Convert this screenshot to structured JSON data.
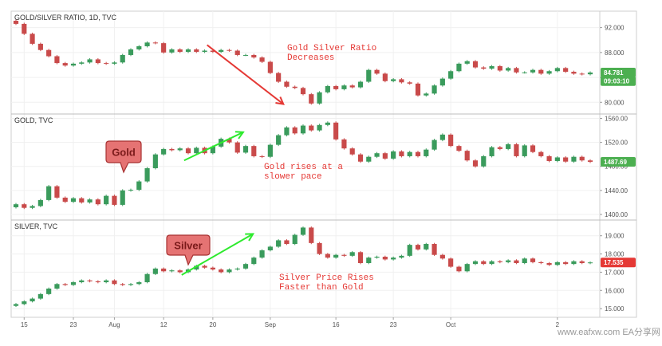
{
  "watermark": "www.eafxw.com  EA分享网",
  "chart_data": [
    {
      "type": "candlestick",
      "title": "GOLD/SILVER RATIO, 1D, TVC",
      "ylim": [
        78.5,
        94.0
      ],
      "yticks": [
        80.0,
        84.0,
        88.0,
        92.0
      ],
      "ytick_labels": [
        "80.000",
        "84.000",
        "88.000",
        "92.000"
      ],
      "price_tags": [
        {
          "label": "84.781",
          "color": "#4caf50",
          "value": 84.781
        },
        {
          "label": "09:03:10",
          "color": "#4caf50",
          "value": 83.4
        }
      ],
      "annotation": {
        "text": [
          "Gold Silver Ratio",
          "Decreases"
        ],
        "arrow_color": "#e53935",
        "arrow_from": {
          "i": 23.3,
          "v": 89.2
        },
        "arrow_to": {
          "i": 32.6,
          "v": 79.7
        }
      },
      "candles": [
        {
          "o": 93.1,
          "c": 92.6
        },
        {
          "o": 92.6,
          "c": 91.0
        },
        {
          "o": 91.0,
          "c": 89.4
        },
        {
          "o": 89.4,
          "c": 88.4
        },
        {
          "o": 88.4,
          "c": 87.4
        },
        {
          "o": 87.4,
          "c": 86.3
        },
        {
          "o": 86.3,
          "c": 85.9
        },
        {
          "o": 85.9,
          "c": 86.2
        },
        {
          "o": 86.2,
          "c": 86.4
        },
        {
          "o": 86.4,
          "c": 86.9
        },
        {
          "o": 86.9,
          "c": 86.3
        },
        {
          "o": 86.3,
          "c": 86.2
        },
        {
          "o": 86.2,
          "c": 86.4
        },
        {
          "o": 86.4,
          "c": 87.6
        },
        {
          "o": 87.6,
          "c": 88.5
        },
        {
          "o": 88.5,
          "c": 89.0
        },
        {
          "o": 89.0,
          "c": 89.6
        },
        {
          "o": 89.6,
          "c": 89.5
        },
        {
          "o": 89.5,
          "c": 88.0
        },
        {
          "o": 88.0,
          "c": 88.5
        },
        {
          "o": 88.5,
          "c": 88.1
        },
        {
          "o": 88.1,
          "c": 88.5
        },
        {
          "o": 88.5,
          "c": 88.1
        },
        {
          "o": 88.1,
          "c": 88.3
        },
        {
          "o": 88.3,
          "c": 88.1
        },
        {
          "o": 88.1,
          "c": 88.4
        },
        {
          "o": 88.4,
          "c": 88.3
        },
        {
          "o": 88.3,
          "c": 87.6
        },
        {
          "o": 87.6,
          "c": 87.6
        },
        {
          "o": 87.6,
          "c": 87.2
        },
        {
          "o": 87.2,
          "c": 86.5
        },
        {
          "o": 86.5,
          "c": 84.7
        },
        {
          "o": 84.7,
          "c": 83.3
        },
        {
          "o": 83.3,
          "c": 82.5
        },
        {
          "o": 82.5,
          "c": 82.3
        },
        {
          "o": 82.3,
          "c": 81.3
        },
        {
          "o": 81.3,
          "c": 79.8
        },
        {
          "o": 79.8,
          "c": 81.6
        },
        {
          "o": 81.6,
          "c": 82.6
        },
        {
          "o": 82.6,
          "c": 82.1
        },
        {
          "o": 82.1,
          "c": 82.7
        },
        {
          "o": 82.7,
          "c": 82.4
        },
        {
          "o": 82.4,
          "c": 83.3
        },
        {
          "o": 83.3,
          "c": 85.2
        },
        {
          "o": 85.2,
          "c": 84.6
        },
        {
          "o": 84.6,
          "c": 83.4
        },
        {
          "o": 83.4,
          "c": 83.7
        },
        {
          "o": 83.7,
          "c": 83.2
        },
        {
          "o": 83.2,
          "c": 83.0
        },
        {
          "o": 83.0,
          "c": 81.1
        },
        {
          "o": 81.1,
          "c": 81.4
        },
        {
          "o": 81.4,
          "c": 82.7
        },
        {
          "o": 82.7,
          "c": 83.8
        },
        {
          "o": 83.8,
          "c": 85.0
        },
        {
          "o": 85.0,
          "c": 86.2
        },
        {
          "o": 86.2,
          "c": 86.6
        },
        {
          "o": 86.6,
          "c": 85.6
        },
        {
          "o": 85.6,
          "c": 85.4
        },
        {
          "o": 85.4,
          "c": 85.8
        },
        {
          "o": 85.8,
          "c": 85.1
        },
        {
          "o": 85.1,
          "c": 85.5
        },
        {
          "o": 85.5,
          "c": 84.8
        },
        {
          "o": 84.8,
          "c": 84.8
        },
        {
          "o": 84.8,
          "c": 85.2
        },
        {
          "o": 85.2,
          "c": 84.6
        },
        {
          "o": 84.6,
          "c": 85.0
        },
        {
          "o": 85.0,
          "c": 85.5
        },
        {
          "o": 85.5,
          "c": 84.9
        },
        {
          "o": 84.9,
          "c": 84.6
        },
        {
          "o": 84.6,
          "c": 84.5
        },
        {
          "o": 84.5,
          "c": 84.781
        }
      ]
    },
    {
      "type": "candlestick",
      "title": "GOLD, TVC",
      "ylim": [
        1396.0,
        1562.0
      ],
      "yticks": [
        1400.0,
        1440.0,
        1480.0,
        1520.0,
        1560.0
      ],
      "ytick_labels": [
        "1400.00",
        "1440.00",
        "1480.00",
        "1520.00",
        "1560.00"
      ],
      "price_tags": [
        {
          "label": "1487.69",
          "color": "#4caf50",
          "value": 1487.69
        }
      ],
      "callout": "Gold",
      "annotation": {
        "text": [
          "Gold rises at a",
          "slower pace"
        ],
        "arrow_color": "#2eea2e",
        "arrow_from": {
          "i": 20.5,
          "v": 1490.0
        },
        "arrow_to": {
          "i": 27.7,
          "v": 1537.0
        }
      },
      "candles": [
        {
          "o": 1412,
          "c": 1417
        },
        {
          "o": 1417,
          "c": 1411
        },
        {
          "o": 1411,
          "c": 1414
        },
        {
          "o": 1414,
          "c": 1424
        },
        {
          "o": 1424,
          "c": 1447
        },
        {
          "o": 1447,
          "c": 1428
        },
        {
          "o": 1428,
          "c": 1421
        },
        {
          "o": 1421,
          "c": 1427
        },
        {
          "o": 1427,
          "c": 1420
        },
        {
          "o": 1420,
          "c": 1425
        },
        {
          "o": 1425,
          "c": 1417
        },
        {
          "o": 1417,
          "c": 1431
        },
        {
          "o": 1431,
          "c": 1416
        },
        {
          "o": 1416,
          "c": 1440
        },
        {
          "o": 1440,
          "c": 1441
        },
        {
          "o": 1441,
          "c": 1455
        },
        {
          "o": 1455,
          "c": 1477
        },
        {
          "o": 1477,
          "c": 1500
        },
        {
          "o": 1500,
          "c": 1509
        },
        {
          "o": 1509,
          "c": 1507
        },
        {
          "o": 1507,
          "c": 1510
        },
        {
          "o": 1510,
          "c": 1502
        },
        {
          "o": 1502,
          "c": 1511
        },
        {
          "o": 1511,
          "c": 1502
        },
        {
          "o": 1502,
          "c": 1513
        },
        {
          "o": 1513,
          "c": 1526
        },
        {
          "o": 1526,
          "c": 1520
        },
        {
          "o": 1520,
          "c": 1503
        },
        {
          "o": 1503,
          "c": 1514
        },
        {
          "o": 1514,
          "c": 1497
        },
        {
          "o": 1497,
          "c": 1496
        },
        {
          "o": 1496,
          "c": 1516
        },
        {
          "o": 1516,
          "c": 1532
        },
        {
          "o": 1532,
          "c": 1545
        },
        {
          "o": 1545,
          "c": 1535
        },
        {
          "o": 1535,
          "c": 1548
        },
        {
          "o": 1548,
          "c": 1540
        },
        {
          "o": 1540,
          "c": 1549
        },
        {
          "o": 1549,
          "c": 1553
        },
        {
          "o": 1553,
          "c": 1525
        },
        {
          "o": 1525,
          "c": 1510
        },
        {
          "o": 1510,
          "c": 1500
        },
        {
          "o": 1500,
          "c": 1488
        },
        {
          "o": 1488,
          "c": 1496
        },
        {
          "o": 1496,
          "c": 1502
        },
        {
          "o": 1502,
          "c": 1493
        },
        {
          "o": 1493,
          "c": 1505
        },
        {
          "o": 1505,
          "c": 1497
        },
        {
          "o": 1497,
          "c": 1504
        },
        {
          "o": 1504,
          "c": 1497
        },
        {
          "o": 1497,
          "c": 1508
        },
        {
          "o": 1508,
          "c": 1524
        },
        {
          "o": 1524,
          "c": 1533
        },
        {
          "o": 1533,
          "c": 1514
        },
        {
          "o": 1514,
          "c": 1506
        },
        {
          "o": 1506,
          "c": 1490
        },
        {
          "o": 1490,
          "c": 1480
        },
        {
          "o": 1480,
          "c": 1497
        },
        {
          "o": 1497,
          "c": 1512
        },
        {
          "o": 1512,
          "c": 1509
        },
        {
          "o": 1509,
          "c": 1517
        },
        {
          "o": 1517,
          "c": 1497
        },
        {
          "o": 1497,
          "c": 1515
        },
        {
          "o": 1515,
          "c": 1504
        },
        {
          "o": 1504,
          "c": 1497
        },
        {
          "o": 1497,
          "c": 1489
        },
        {
          "o": 1489,
          "c": 1495
        },
        {
          "o": 1495,
          "c": 1488
        },
        {
          "o": 1488,
          "c": 1496
        },
        {
          "o": 1496,
          "c": 1490
        },
        {
          "o": 1490,
          "c": 1487.69
        }
      ]
    },
    {
      "type": "candlestick",
      "title": "SILVER, TVC",
      "ylim": [
        14.7,
        19.6
      ],
      "yticks": [
        15.0,
        16.0,
        17.0,
        18.0,
        19.0
      ],
      "ytick_labels": [
        "15.000",
        "16.000",
        "17.000",
        "18.000",
        "19.000"
      ],
      "price_tags": [
        {
          "label": "17.535",
          "color": "#e53935",
          "value": 17.535
        }
      ],
      "callout": "Silver",
      "annotation": {
        "text": [
          "Silver Price Rises",
          "Faster than Gold"
        ],
        "arrow_color": "#2eea2e",
        "arrow_from": {
          "i": 20.2,
          "v": 16.85
        },
        "arrow_to": {
          "i": 28.9,
          "v": 19.1
        }
      },
      "candles": [
        {
          "o": 15.15,
          "c": 15.25
        },
        {
          "o": 15.25,
          "c": 15.4
        },
        {
          "o": 15.4,
          "c": 15.55
        },
        {
          "o": 15.55,
          "c": 15.8
        },
        {
          "o": 15.8,
          "c": 16.1
        },
        {
          "o": 16.1,
          "c": 16.35
        },
        {
          "o": 16.35,
          "c": 16.3
        },
        {
          "o": 16.3,
          "c": 16.45
        },
        {
          "o": 16.45,
          "c": 16.55
        },
        {
          "o": 16.55,
          "c": 16.5
        },
        {
          "o": 16.5,
          "c": 16.45
        },
        {
          "o": 16.45,
          "c": 16.55
        },
        {
          "o": 16.55,
          "c": 16.35
        },
        {
          "o": 16.35,
          "c": 16.3
        },
        {
          "o": 16.3,
          "c": 16.35
        },
        {
          "o": 16.35,
          "c": 16.45
        },
        {
          "o": 16.45,
          "c": 16.9
        },
        {
          "o": 16.9,
          "c": 17.2
        },
        {
          "o": 17.2,
          "c": 17.05
        },
        {
          "o": 17.05,
          "c": 17.1
        },
        {
          "o": 17.1,
          "c": 17.0
        },
        {
          "o": 17.0,
          "c": 17.15
        },
        {
          "o": 17.15,
          "c": 17.35
        },
        {
          "o": 17.35,
          "c": 17.25
        },
        {
          "o": 17.25,
          "c": 17.15
        },
        {
          "o": 17.15,
          "c": 17.0
        },
        {
          "o": 17.0,
          "c": 17.15
        },
        {
          "o": 17.15,
          "c": 17.2
        },
        {
          "o": 17.2,
          "c": 17.45
        },
        {
          "o": 17.45,
          "c": 17.8
        },
        {
          "o": 17.8,
          "c": 18.2
        },
        {
          "o": 18.2,
          "c": 18.4
        },
        {
          "o": 18.4,
          "c": 18.75
        },
        {
          "o": 18.75,
          "c": 18.55
        },
        {
          "o": 18.55,
          "c": 19.05
        },
        {
          "o": 19.05,
          "c": 19.45
        },
        {
          "o": 19.45,
          "c": 18.6
        },
        {
          "o": 18.6,
          "c": 18.0
        },
        {
          "o": 18.0,
          "c": 17.8
        },
        {
          "o": 17.8,
          "c": 17.95
        },
        {
          "o": 17.95,
          "c": 17.9
        },
        {
          "o": 17.9,
          "c": 18.1
        },
        {
          "o": 18.1,
          "c": 17.5
        },
        {
          "o": 17.5,
          "c": 17.8
        },
        {
          "o": 17.8,
          "c": 17.85
        },
        {
          "o": 17.85,
          "c": 17.7
        },
        {
          "o": 17.7,
          "c": 17.8
        },
        {
          "o": 17.8,
          "c": 17.9
        },
        {
          "o": 17.9,
          "c": 18.5
        },
        {
          "o": 18.5,
          "c": 18.25
        },
        {
          "o": 18.25,
          "c": 18.55
        },
        {
          "o": 18.55,
          "c": 17.95
        },
        {
          "o": 17.95,
          "c": 17.75
        },
        {
          "o": 17.75,
          "c": 17.3
        },
        {
          "o": 17.3,
          "c": 17.05
        },
        {
          "o": 17.05,
          "c": 17.45
        },
        {
          "o": 17.45,
          "c": 17.6
        },
        {
          "o": 17.6,
          "c": 17.45
        },
        {
          "o": 17.45,
          "c": 17.6
        },
        {
          "o": 17.6,
          "c": 17.55
        },
        {
          "o": 17.55,
          "c": 17.65
        },
        {
          "o": 17.65,
          "c": 17.5
        },
        {
          "o": 17.5,
          "c": 17.75
        },
        {
          "o": 17.75,
          "c": 17.55
        },
        {
          "o": 17.55,
          "c": 17.5
        },
        {
          "o": 17.5,
          "c": 17.4
        },
        {
          "o": 17.4,
          "c": 17.55
        },
        {
          "o": 17.55,
          "c": 17.45
        },
        {
          "o": 17.45,
          "c": 17.6
        },
        {
          "o": 17.6,
          "c": 17.5
        },
        {
          "o": 17.5,
          "c": 17.535
        }
      ]
    }
  ],
  "x_axis": {
    "ticks": [
      {
        "label": "15",
        "i": 1
      },
      {
        "label": "23",
        "i": 7
      },
      {
        "label": "Aug",
        "i": 12
      },
      {
        "label": "12",
        "i": 18
      },
      {
        "label": "20",
        "i": 24
      },
      {
        "label": "Sep",
        "i": 31
      },
      {
        "label": "16",
        "i": 39
      },
      {
        "label": "23",
        "i": 46
      },
      {
        "label": "Oct",
        "i": 53
      },
      {
        "label": "2",
        "i": 66
      }
    ]
  },
  "colors": {
    "up": "#3a9b5c",
    "down": "#c94a4a",
    "callout_fill": "#e57373",
    "callout_stroke": "#a83232"
  }
}
